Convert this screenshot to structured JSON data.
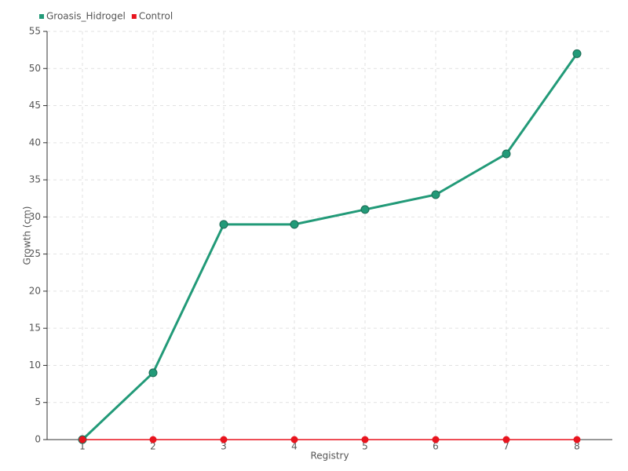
{
  "chart_data": {
    "type": "line",
    "x_label": "Registry",
    "y_label": "Growth (cm)",
    "categories": [
      "1",
      "2",
      "3",
      "4",
      "5",
      "6",
      "7",
      "8"
    ],
    "series": [
      {
        "name": "Groasis_Hidrogel",
        "color": "#229a78",
        "values": [
          0,
          9,
          29,
          29,
          31,
          33,
          38.5,
          52
        ]
      },
      {
        "name": "Control",
        "color": "#e8141e",
        "values": [
          0,
          0,
          0,
          0,
          0,
          0,
          0,
          0
        ]
      }
    ],
    "ylim": [
      0,
      55
    ],
    "yticks": [
      0,
      5,
      10,
      15,
      20,
      25,
      30,
      35,
      40,
      45,
      50,
      55
    ],
    "grid": true
  }
}
